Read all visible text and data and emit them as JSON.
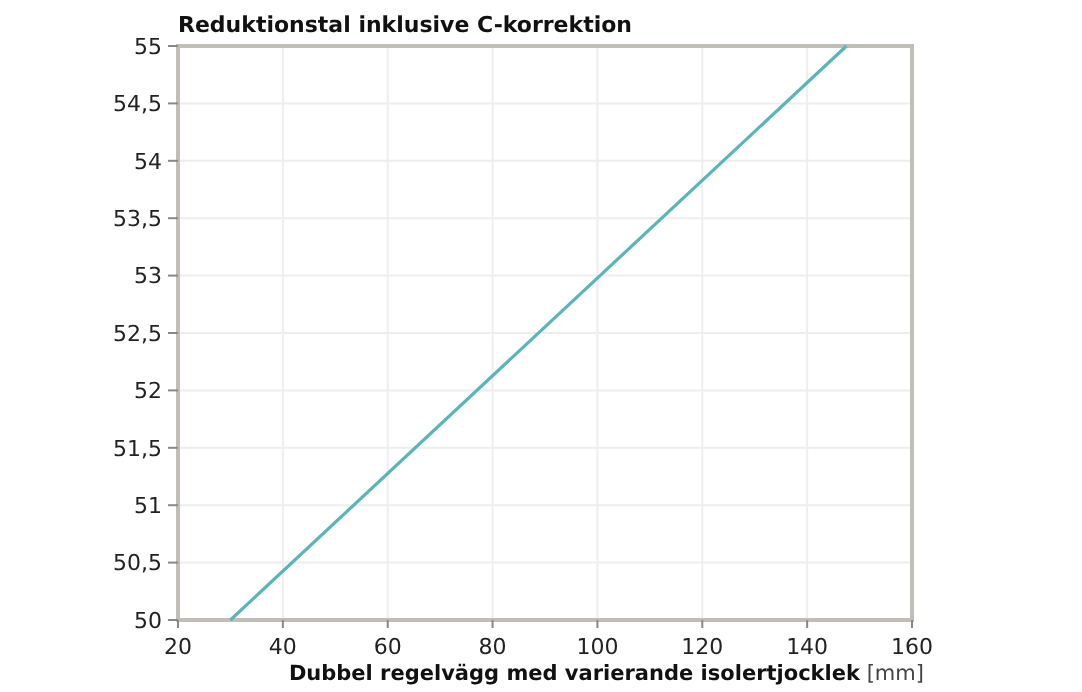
{
  "chart_data": {
    "type": "line",
    "title": "Reduktionstal inklusive C-korrektion",
    "xlabel": "Dubbel regelvägg med varierande isolertjocklek [mm]",
    "series": [
      {
        "color": "#5bb5b8",
        "x": [
          30,
          147.5
        ],
        "values": [
          50,
          55
        ]
      }
    ],
    "xlim": [
      20,
      160
    ],
    "xticks": [
      20,
      40,
      60,
      80,
      100,
      120,
      140,
      160
    ],
    "ylim": [
      50,
      55
    ],
    "yticks": [
      50,
      {
        "value": 50.5,
        "label": "50,5"
      },
      51,
      {
        "value": 51.5,
        "label": "51,5"
      },
      52,
      {
        "value": 52.5,
        "label": "52,5"
      },
      53,
      {
        "value": 53.5,
        "label": "53,5"
      },
      54,
      {
        "value": 54.5,
        "label": "54,5"
      },
      55
    ],
    "grid": true,
    "marker": "none",
    "line_style": "solid"
  }
}
